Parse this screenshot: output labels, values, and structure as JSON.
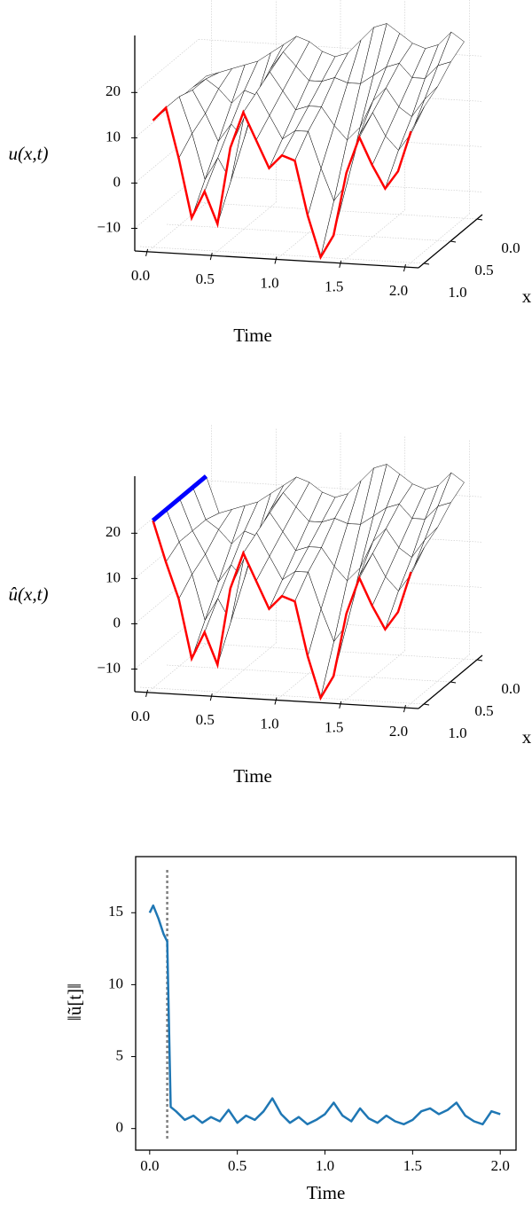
{
  "chart_data": [
    {
      "type": "surface3d",
      "t": [
        0,
        0.1,
        0.2,
        0.3,
        0.4,
        0.5,
        0.6,
        0.7,
        0.8,
        0.9,
        1.0,
        1.1,
        1.2,
        1.3,
        1.4,
        1.5,
        1.6,
        1.7,
        1.8,
        1.9,
        2.0
      ],
      "x": [
        0,
        0.25,
        0.5,
        0.75,
        1
      ],
      "z": [
        [
          13,
          14,
          15,
          16,
          17,
          19,
          21,
          23,
          22,
          20,
          19,
          20,
          23,
          26,
          27,
          25,
          23,
          22,
          23,
          26,
          24
        ],
        [
          13,
          15,
          13,
          10,
          13,
          12,
          18,
          22,
          19,
          16,
          16,
          17,
          16,
          16,
          18,
          20,
          21,
          18,
          18,
          21,
          22
        ],
        [
          13,
          15,
          10,
          4,
          8,
          5,
          15,
          20,
          16,
          12,
          13,
          13,
          9,
          6,
          9,
          15,
          18,
          14,
          12,
          16,
          19
        ],
        [
          13,
          16,
          8,
          -2,
          3,
          -2,
          12,
          18,
          13,
          8,
          10,
          10,
          2,
          -5,
          -1,
          10,
          15,
          10,
          7,
          11,
          17
        ],
        [
          13,
          16,
          5,
          -8,
          -2,
          -9,
          8,
          16,
          10,
          4,
          7,
          6,
          -6,
          -15,
          -10,
          4,
          12,
          6,
          1,
          5,
          14
        ]
      ],
      "tlim": [
        -0.1,
        2.1
      ],
      "xlim": [
        -0.1,
        1.1
      ],
      "zlim": [
        -15,
        32.6
      ],
      "tticks": [
        {
          "value": 0,
          "label": "0.0"
        },
        0.5,
        {
          "value": 1,
          "label": "1.0"
        },
        1.5,
        {
          "value": 2,
          "label": "2.0"
        }
      ],
      "xticks": [
        {
          "value": 0,
          "label": "0.0"
        },
        0.5,
        {
          "value": 1,
          "label": "1.0"
        }
      ],
      "zticks": [
        {
          "value": -10,
          "label": "−10"
        },
        0,
        10,
        20
      ],
      "tlabel": "Time",
      "xlabel": "x",
      "zlabel": "u(x,t)",
      "wire_color": "#000000",
      "edge_color": "#ff0000"
    },
    {
      "type": "surface3d",
      "t": [
        0,
        0.1,
        0.2,
        0.3,
        0.4,
        0.5,
        0.6,
        0.7,
        0.8,
        0.9,
        1.0,
        1.1,
        1.2,
        1.3,
        1.4,
        1.5,
        1.6,
        1.7,
        1.8,
        1.9,
        2.0
      ],
      "x": [
        0,
        0.25,
        0.5,
        0.75,
        1
      ],
      "z": [
        [
          22,
          14,
          15,
          16,
          17,
          19,
          21,
          23,
          22,
          20,
          19,
          20,
          23,
          26,
          27,
          25,
          23,
          22,
          23,
          26,
          24
        ],
        [
          22,
          15,
          13,
          10,
          13,
          12,
          18,
          22,
          19,
          16,
          16,
          17,
          16,
          16,
          18,
          20,
          21,
          18,
          18,
          21,
          22
        ],
        [
          22,
          15,
          10,
          4,
          8,
          5,
          15,
          20,
          16,
          12,
          13,
          13,
          9,
          6,
          9,
          15,
          18,
          14,
          12,
          16,
          19
        ],
        [
          22,
          15,
          8,
          -2,
          3,
          -2,
          12,
          18,
          13,
          8,
          10,
          10,
          2,
          -5,
          -1,
          10,
          15,
          10,
          7,
          11,
          17
        ],
        [
          22,
          13,
          5,
          -8,
          -2,
          -9,
          8,
          16,
          10,
          4,
          7,
          6,
          -6,
          -15,
          -10,
          4,
          12,
          6,
          1,
          5,
          14
        ]
      ],
      "tlim": [
        -0.1,
        2.1
      ],
      "xlim": [
        -0.1,
        1.1
      ],
      "zlim": [
        -15,
        32.6
      ],
      "tticks": [
        {
          "value": 0,
          "label": "0.0"
        },
        0.5,
        {
          "value": 1,
          "label": "1.0"
        },
        1.5,
        {
          "value": 2,
          "label": "2.0"
        }
      ],
      "xticks": [
        {
          "value": 0,
          "label": "0.0"
        },
        0.5,
        {
          "value": 1,
          "label": "1.0"
        }
      ],
      "zticks": [
        {
          "value": -10,
          "label": "−10"
        },
        0,
        10,
        20
      ],
      "tlabel": "Time",
      "xlabel": "x",
      "zlabel": "û(x,t)",
      "wire_color": "#000000",
      "edge_color": "#ff0000",
      "highlight_color": "#0000ff"
    },
    {
      "type": "line",
      "x": [
        0,
        0.02,
        0.05,
        0.08,
        0.1,
        0.12,
        0.15,
        0.2,
        0.25,
        0.3,
        0.35,
        0.4,
        0.45,
        0.5,
        0.55,
        0.6,
        0.65,
        0.7,
        0.75,
        0.8,
        0.85,
        0.9,
        0.95,
        1.0,
        1.05,
        1.1,
        1.15,
        1.2,
        1.25,
        1.3,
        1.35,
        1.4,
        1.45,
        1.5,
        1.55,
        1.6,
        1.65,
        1.7,
        1.75,
        1.8,
        1.85,
        1.9,
        1.95,
        2.0
      ],
      "values": [
        15,
        15.5,
        14.6,
        13.5,
        13,
        1.5,
        1.2,
        0.6,
        0.9,
        0.4,
        0.8,
        0.5,
        1.3,
        0.4,
        0.9,
        0.6,
        1.2,
        2.1,
        1.0,
        0.4,
        0.8,
        0.3,
        0.6,
        1.0,
        1.8,
        0.9,
        0.5,
        1.4,
        0.7,
        0.4,
        0.9,
        0.5,
        0.3,
        0.6,
        1.2,
        1.4,
        1.0,
        1.3,
        1.8,
        0.9,
        0.5,
        0.3,
        1.2,
        1.0
      ],
      "color": "#1f77b4",
      "vline": 0.1,
      "vline_color": "#808080",
      "xlim": [
        -0.08,
        2.09
      ],
      "ylim": [
        -1.5,
        18.9
      ],
      "xticks": [
        {
          "value": 0,
          "label": "0.0"
        },
        0.5,
        {
          "value": 1,
          "label": "1.0"
        },
        1.5,
        {
          "value": 2,
          "label": "2.0"
        }
      ],
      "yticks": [
        0,
        5,
        10,
        15
      ],
      "xlabel": "Time",
      "ylabel": "‖ũ[t]‖"
    }
  ]
}
